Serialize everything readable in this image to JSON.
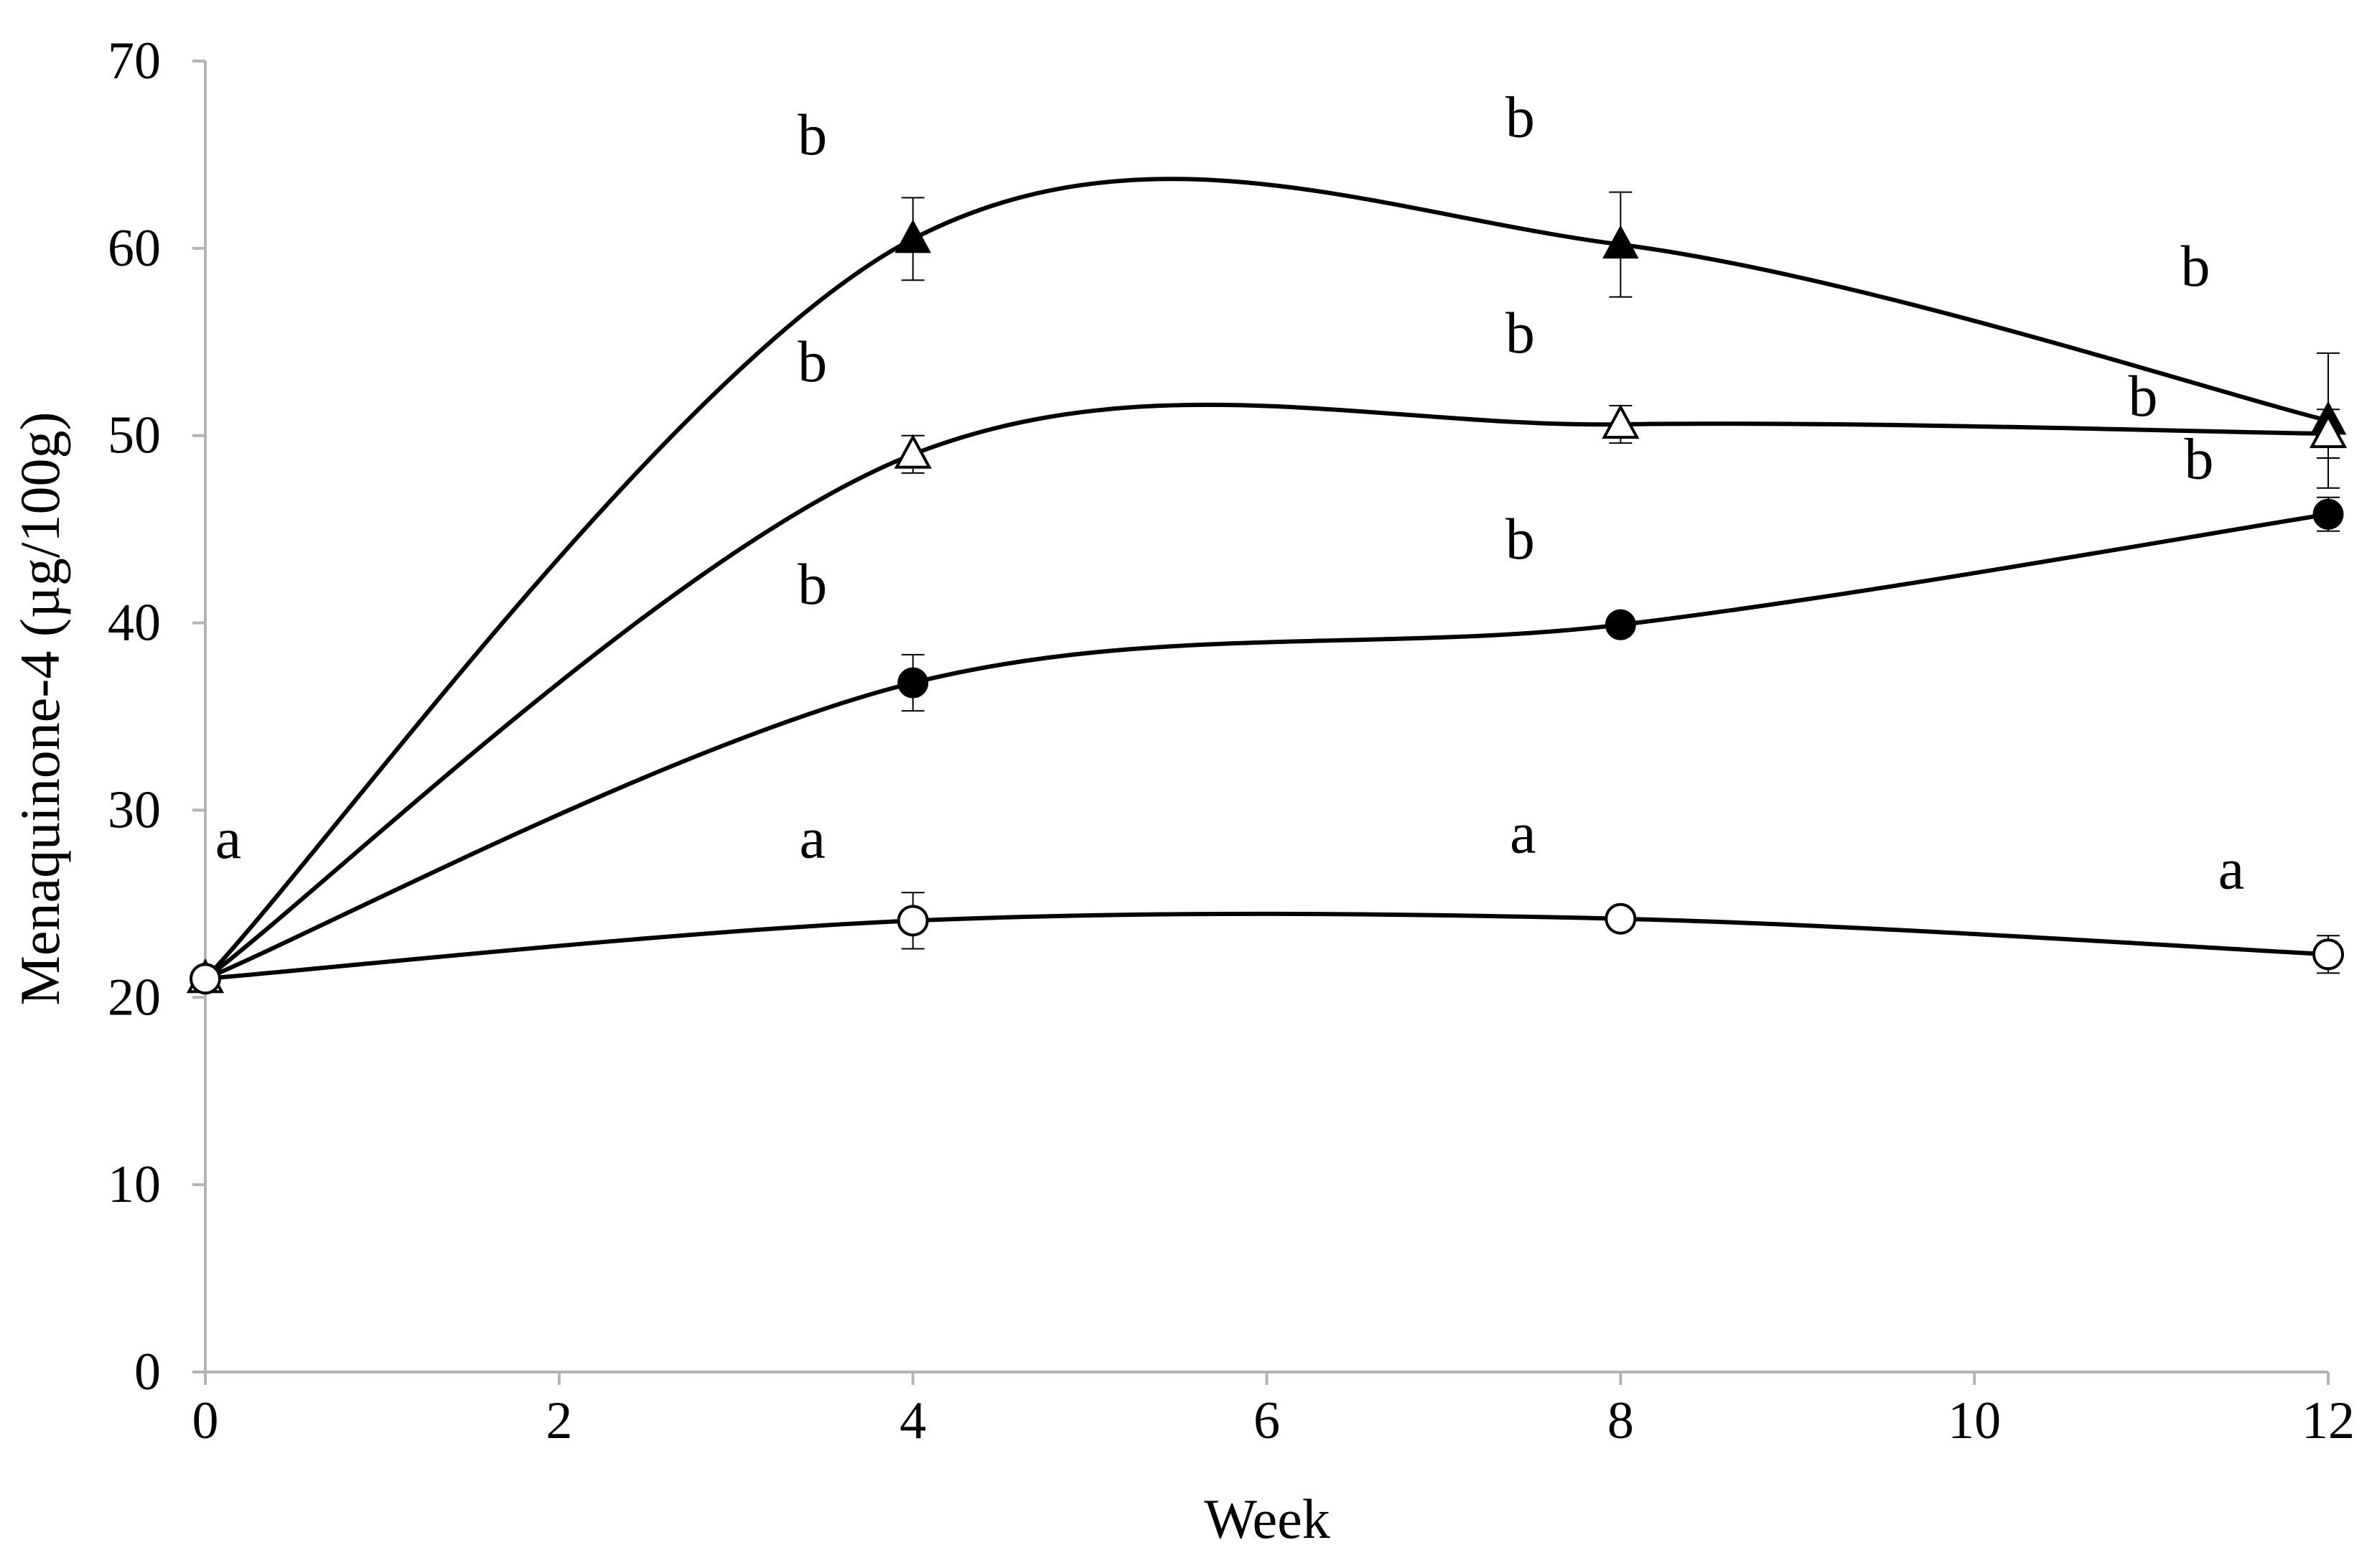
{
  "chart_data": {
    "type": "line",
    "title": "",
    "xlabel": "Week",
    "ylabel": "Menaquinone-4 (µg/100g)",
    "xlim": [
      0,
      12
    ],
    "ylim": [
      0,
      70
    ],
    "xticks": [
      0,
      2,
      4,
      6,
      8,
      10,
      12
    ],
    "yticks": [
      0,
      10,
      20,
      30,
      40,
      50,
      60,
      70
    ],
    "grid": false,
    "legend": "none",
    "x": [
      0,
      4,
      8,
      12
    ],
    "series": [
      {
        "name": "filled triangle",
        "marker": "triangle-filled",
        "values": [
          21.0,
          60.5,
          60.2,
          50.8
        ],
        "errors": [
          0.4,
          2.2,
          2.8,
          3.6
        ],
        "letters": [
          "",
          "b",
          "b",
          "b"
        ]
      },
      {
        "name": "open triangle",
        "marker": "triangle-open",
        "values": [
          21.0,
          49.0,
          50.6,
          50.1
        ],
        "errors": [
          0.4,
          1.0,
          1.0,
          1.3
        ],
        "letters": [
          "",
          "b",
          "b",
          "b"
        ]
      },
      {
        "name": "filled circle",
        "marker": "circle-filled",
        "values": [
          21.0,
          36.8,
          39.9,
          45.8
        ],
        "errors": [
          0.4,
          1.5,
          0.5,
          0.9
        ],
        "letters": [
          "",
          "b",
          "b",
          "b"
        ]
      },
      {
        "name": "open circle",
        "marker": "circle-open",
        "values": [
          21.0,
          24.1,
          24.2,
          22.3
        ],
        "errors": [
          0.4,
          1.5,
          0.3,
          1.0
        ],
        "letters": [
          "a",
          "a",
          "a",
          "a"
        ]
      }
    ]
  }
}
